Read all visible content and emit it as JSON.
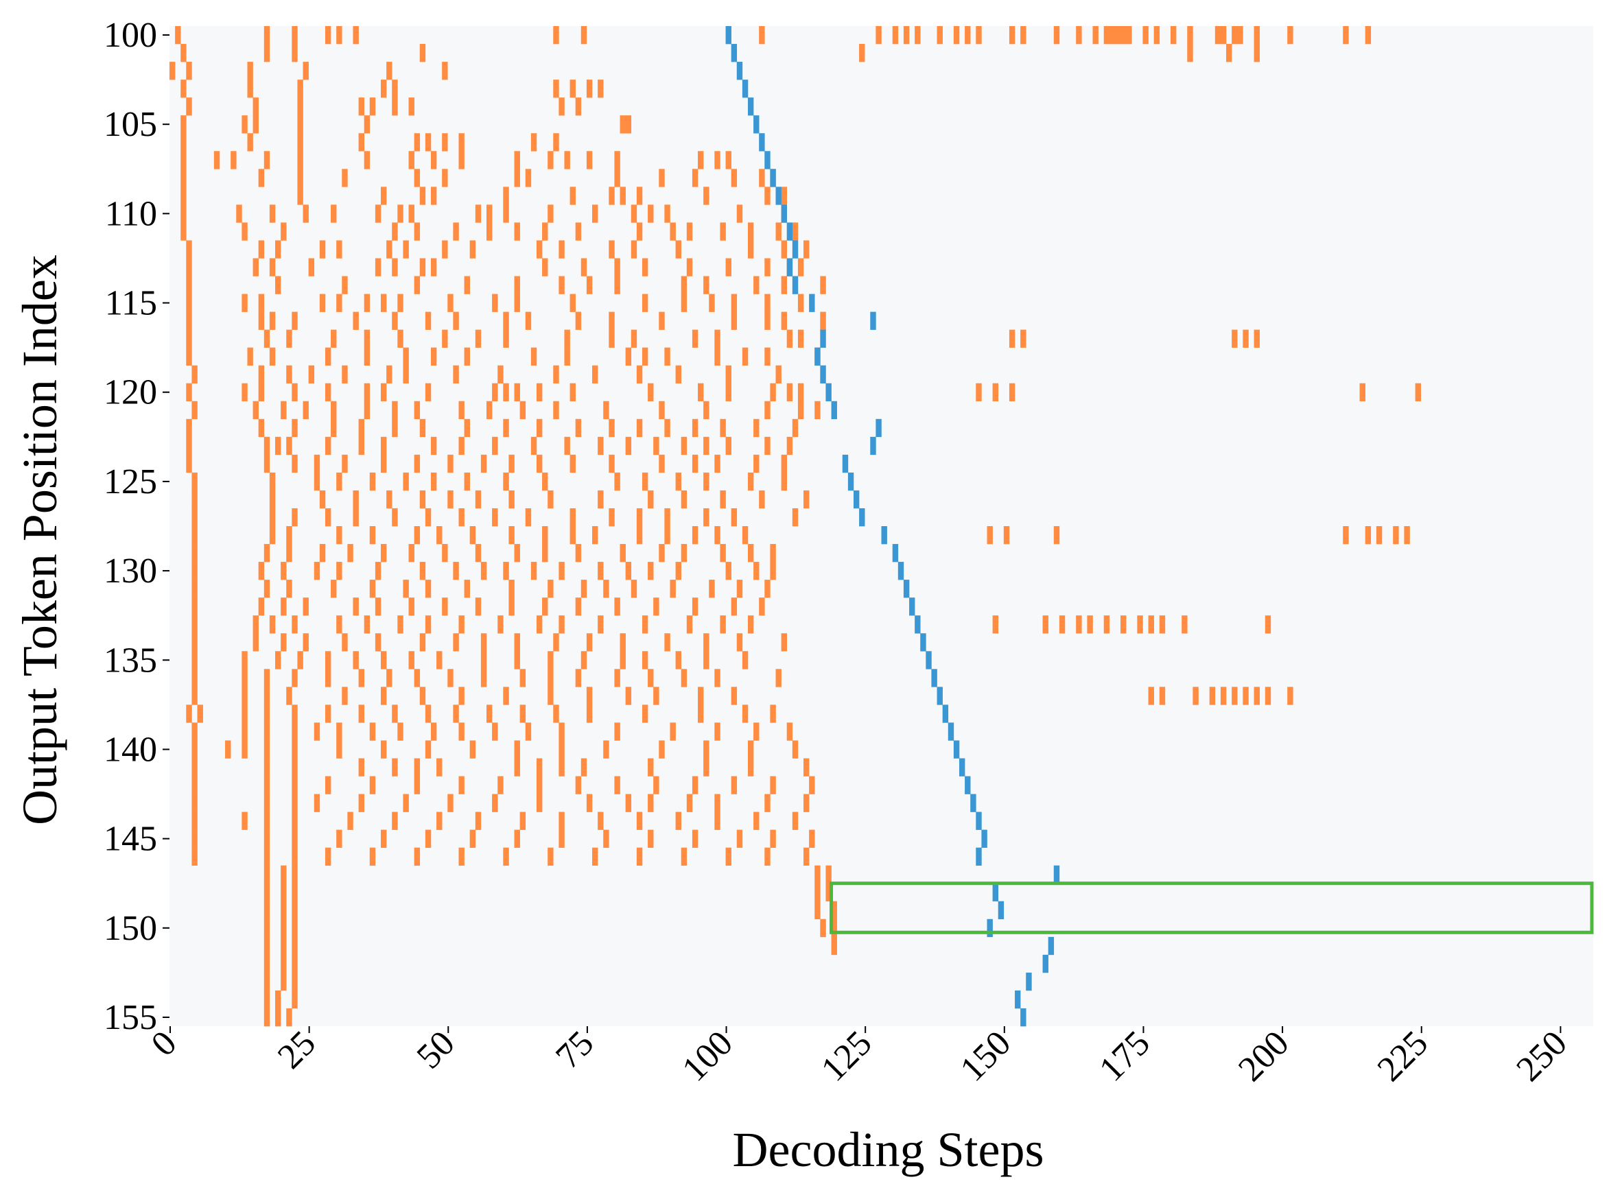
{
  "chart_data": {
    "type": "heatmap",
    "xlabel": "Decoding Steps",
    "ylabel": "Output Token Position Index",
    "xlim": [
      0,
      256
    ],
    "ylim": [
      100,
      155
    ],
    "x_ticks": [
      0,
      25,
      50,
      75,
      100,
      125,
      150,
      175,
      200,
      225,
      250
    ],
    "x_tick_rotation": 45,
    "y_ticks": [
      100,
      105,
      110,
      115,
      120,
      125,
      130,
      135,
      140,
      145,
      150,
      155
    ],
    "grid": false,
    "legend": "none",
    "colors": {
      "background": "#f7f8fa",
      "orange": "#ff8c40",
      "blue": "#3a97d4",
      "highlight_box": "#4cb83c"
    },
    "row_range": [
      100,
      155
    ],
    "column_range": [
      0,
      256
    ],
    "orange_cells": [
      [
        100,
        [
          1,
          17,
          22,
          28,
          30,
          33,
          69,
          74,
          106,
          127,
          130,
          132,
          134,
          138,
          141,
          143,
          145,
          151,
          153,
          159,
          163,
          166,
          168,
          169,
          170,
          171,
          172,
          175,
          177,
          180,
          183,
          188,
          189,
          191,
          192,
          195,
          201,
          211,
          215
        ]
      ],
      [
        101,
        [
          2,
          17,
          22,
          45,
          124,
          183,
          190,
          195
        ]
      ],
      [
        102,
        [
          0,
          3,
          14,
          24,
          39,
          49
        ]
      ],
      [
        103,
        [
          2,
          14,
          23,
          38,
          40,
          69,
          72,
          75,
          77
        ]
      ],
      [
        104,
        [
          3,
          15,
          23,
          34,
          36,
          40,
          43,
          70,
          73
        ]
      ],
      [
        105,
        [
          2,
          13,
          15,
          23,
          35,
          81,
          82
        ]
      ],
      [
        106,
        [
          2,
          14,
          23,
          34,
          44,
          46,
          49,
          52,
          65,
          69
        ]
      ],
      [
        107,
        [
          2,
          8,
          11,
          17,
          23,
          35,
          43,
          47,
          52,
          62,
          68,
          71,
          75,
          80,
          95,
          98,
          100
        ]
      ],
      [
        108,
        [
          2,
          16,
          23,
          31,
          44,
          49,
          62,
          64,
          80,
          88,
          94,
          101,
          106,
          108
        ]
      ],
      [
        109,
        [
          2,
          23,
          38,
          45,
          47,
          60,
          72,
          79,
          81,
          84,
          96,
          107,
          110
        ]
      ],
      [
        110,
        [
          2,
          12,
          18,
          24,
          29,
          37,
          41,
          43,
          55,
          57,
          60,
          68,
          76,
          83,
          86,
          89,
          102,
          110
        ]
      ],
      [
        111,
        [
          2,
          13,
          20,
          40,
          44,
          51,
          57,
          62,
          67,
          73,
          84,
          90,
          93,
          99,
          104,
          109,
          112
        ]
      ],
      [
        112,
        [
          3,
          16,
          19,
          27,
          30,
          39,
          42,
          49,
          54,
          66,
          70,
          79,
          83,
          91,
          104,
          110,
          114
        ]
      ],
      [
        113,
        [
          3,
          15,
          18,
          25,
          37,
          40,
          45,
          47,
          67,
          74,
          80,
          85,
          93,
          100,
          107,
          111,
          113
        ]
      ],
      [
        114,
        [
          3,
          19,
          31,
          44,
          53,
          62,
          70,
          75,
          80,
          92,
          96,
          105,
          110,
          117
        ]
      ],
      [
        115,
        [
          3,
          13,
          16,
          27,
          30,
          35,
          38,
          41,
          50,
          58,
          62,
          72,
          85,
          92,
          97,
          101,
          107,
          113
        ]
      ],
      [
        116,
        [
          3,
          16,
          18,
          22,
          33,
          40,
          46,
          51,
          60,
          64,
          73,
          79,
          88,
          101,
          107,
          110,
          117
        ]
      ],
      [
        117,
        [
          3,
          17,
          21,
          29,
          35,
          41,
          49,
          55,
          60,
          71,
          79,
          83,
          94,
          98,
          111,
          113,
          151,
          153,
          191,
          193,
          195
        ]
      ],
      [
        118,
        [
          3,
          14,
          18,
          28,
          35,
          42,
          47,
          53,
          65,
          71,
          82,
          85,
          89,
          98,
          103,
          107,
          116
        ]
      ],
      [
        119,
        [
          4,
          16,
          21,
          25,
          31,
          39,
          42,
          51,
          59,
          69,
          76,
          84,
          91,
          100,
          109
        ]
      ],
      [
        120,
        [
          3,
          13,
          16,
          22,
          28,
          35,
          38,
          46,
          58,
          60,
          62,
          66,
          72,
          86,
          95,
          100,
          108,
          111,
          113,
          145,
          148,
          151,
          214,
          224
        ]
      ],
      [
        121,
        [
          4,
          15,
          20,
          24,
          29,
          35,
          40,
          44,
          52,
          57,
          63,
          69,
          78,
          88,
          96,
          107,
          113,
          116
        ]
      ],
      [
        122,
        [
          3,
          16,
          22,
          29,
          34,
          40,
          45,
          53,
          60,
          66,
          73,
          79,
          84,
          89,
          94,
          99,
          105,
          112
        ]
      ],
      [
        123,
        [
          3,
          17,
          19,
          21,
          28,
          34,
          38,
          47,
          52,
          58,
          65,
          71,
          77,
          82,
          87,
          92,
          96,
          100,
          107,
          111
        ]
      ],
      [
        124,
        [
          3,
          17,
          22,
          26,
          31,
          38,
          44,
          50,
          56,
          61,
          66,
          72,
          79,
          88,
          94,
          98,
          105,
          110
        ]
      ],
      [
        125,
        [
          4,
          18,
          26,
          30,
          36,
          42,
          47,
          53,
          60,
          67,
          80,
          85,
          91,
          96,
          104,
          110
        ]
      ],
      [
        126,
        [
          4,
          18,
          27,
          33,
          39,
          45,
          50,
          55,
          61,
          68,
          77,
          86,
          92,
          99,
          106,
          114
        ]
      ],
      [
        127,
        [
          4,
          18,
          22,
          28,
          33,
          40,
          46,
          52,
          58,
          64,
          72,
          79,
          84,
          89,
          96,
          101,
          112
        ]
      ],
      [
        128,
        [
          4,
          18,
          21,
          30,
          36,
          44,
          48,
          54,
          61,
          67,
          72,
          76,
          84,
          89,
          94,
          98,
          103,
          147,
          150,
          159,
          211,
          215,
          217,
          220,
          222
        ]
      ],
      [
        129,
        [
          4,
          17,
          21,
          27,
          32,
          38,
          43,
          49,
          55,
          62,
          67,
          73,
          81,
          88,
          92,
          99,
          104,
          108
        ]
      ],
      [
        130,
        [
          4,
          16,
          20,
          26,
          30,
          37,
          45,
          51,
          56,
          60,
          65,
          70,
          77,
          82,
          86,
          91,
          100,
          105,
          108
        ]
      ],
      [
        131,
        [
          4,
          17,
          21,
          29,
          36,
          42,
          46,
          53,
          61,
          68,
          74,
          78,
          83,
          90,
          97,
          102,
          107
        ]
      ],
      [
        132,
        [
          4,
          16,
          20,
          24,
          33,
          37,
          43,
          49,
          55,
          61,
          67,
          73,
          80,
          87,
          94,
          101,
          106
        ]
      ],
      [
        133,
        [
          4,
          15,
          18,
          22,
          30,
          35,
          41,
          46,
          52,
          59,
          66,
          70,
          77,
          85,
          93,
          99,
          104,
          148,
          157,
          160,
          163,
          165,
          168,
          171,
          174,
          176,
          178,
          182,
          197
        ]
      ],
      [
        134,
        [
          4,
          15,
          20,
          24,
          31,
          37,
          45,
          51,
          56,
          62,
          69,
          75,
          81,
          89,
          96,
          102,
          110
        ]
      ],
      [
        135,
        [
          4,
          13,
          19,
          23,
          28,
          33,
          38,
          43,
          48,
          56,
          62,
          68,
          74,
          81,
          85,
          91,
          96,
          103
        ]
      ],
      [
        136,
        [
          4,
          13,
          17,
          22,
          28,
          34,
          39,
          44,
          50,
          56,
          63,
          68,
          73,
          80,
          86,
          92,
          98,
          109
        ]
      ],
      [
        137,
        [
          4,
          13,
          17,
          21,
          31,
          38,
          45,
          52,
          60,
          68,
          75,
          82,
          87,
          95,
          101,
          176,
          178,
          184,
          187,
          189,
          191,
          193,
          195,
          197,
          201
        ]
      ],
      [
        138,
        [
          3,
          5,
          13,
          17,
          22,
          28,
          34,
          40,
          46,
          51,
          57,
          63,
          69,
          75,
          85,
          95,
          103,
          108
        ]
      ],
      [
        139,
        [
          4,
          13,
          17,
          22,
          26,
          30,
          36,
          41,
          47,
          52,
          58,
          64,
          70,
          80,
          90,
          98,
          105,
          111
        ]
      ],
      [
        140,
        [
          4,
          10,
          13,
          17,
          22,
          30,
          38,
          46,
          54,
          62,
          70,
          78,
          88,
          96,
          104,
          112
        ]
      ],
      [
        141,
        [
          4,
          17,
          22,
          34,
          40,
          44,
          48,
          62,
          66,
          70,
          74,
          86,
          96,
          104,
          114
        ]
      ],
      [
        142,
        [
          4,
          17,
          22,
          28,
          36,
          44,
          52,
          59,
          66,
          73,
          80,
          87,
          94,
          101,
          108,
          115
        ]
      ],
      [
        143,
        [
          4,
          17,
          22,
          26,
          34,
          42,
          50,
          58,
          66,
          75,
          82,
          86,
          93,
          98,
          107,
          114
        ]
      ],
      [
        144,
        [
          4,
          13,
          17,
          22,
          32,
          40,
          48,
          55,
          63,
          70,
          77,
          84,
          91,
          98,
          105,
          112
        ]
      ],
      [
        145,
        [
          4,
          17,
          22,
          30,
          38,
          46,
          54,
          62,
          70,
          78,
          86,
          94,
          102,
          108,
          115
        ]
      ],
      [
        146,
        [
          4,
          17,
          22,
          28,
          36,
          44,
          52,
          60,
          68,
          76,
          84,
          92,
          100,
          107,
          114
        ]
      ],
      [
        147,
        [
          17,
          20,
          22,
          116,
          118
        ]
      ],
      [
        148,
        [
          17,
          20,
          22,
          116,
          118
        ]
      ],
      [
        149,
        [
          17,
          20,
          22,
          116,
          119
        ]
      ],
      [
        150,
        [
          17,
          20,
          22,
          117,
          119
        ]
      ],
      [
        151,
        [
          17,
          20,
          22,
          119
        ]
      ],
      [
        152,
        [
          17,
          20,
          22
        ]
      ],
      [
        153,
        [
          17,
          20,
          22
        ]
      ],
      [
        154,
        [
          17,
          19,
          22
        ]
      ],
      [
        155,
        [
          17,
          19,
          21
        ]
      ]
    ],
    "blue_cells": [
      [
        100,
        100
      ],
      [
        101,
        101
      ],
      [
        102,
        102
      ],
      [
        103,
        103
      ],
      [
        104,
        104
      ],
      [
        105,
        105
      ],
      [
        106,
        106
      ],
      [
        107,
        107
      ],
      [
        108,
        108
      ],
      [
        109,
        109
      ],
      [
        110,
        110
      ],
      [
        111,
        111
      ],
      [
        112,
        112
      ],
      [
        113,
        111
      ],
      [
        114,
        112
      ],
      [
        115,
        115
      ],
      [
        116,
        126
      ],
      [
        117,
        117
      ],
      [
        118,
        116
      ],
      [
        119,
        117
      ],
      [
        120,
        118
      ],
      [
        121,
        119
      ],
      [
        122,
        127
      ],
      [
        123,
        126
      ],
      [
        124,
        121
      ],
      [
        125,
        122
      ],
      [
        126,
        123
      ],
      [
        127,
        124
      ],
      [
        128,
        128
      ],
      [
        129,
        130
      ],
      [
        130,
        131
      ],
      [
        131,
        132
      ],
      [
        132,
        133
      ],
      [
        133,
        134
      ],
      [
        134,
        135
      ],
      [
        135,
        136
      ],
      [
        136,
        137
      ],
      [
        137,
        138
      ],
      [
        138,
        139
      ],
      [
        139,
        140
      ],
      [
        140,
        141
      ],
      [
        141,
        142
      ],
      [
        142,
        143
      ],
      [
        143,
        144
      ],
      [
        144,
        145
      ],
      [
        145,
        146
      ],
      [
        146,
        145
      ],
      [
        147,
        159
      ],
      [
        148,
        148
      ],
      [
        149,
        149
      ],
      [
        150,
        147
      ],
      [
        151,
        158
      ],
      [
        152,
        157
      ],
      [
        153,
        154
      ],
      [
        154,
        152
      ],
      [
        155,
        153
      ]
    ],
    "highlight_box": {
      "x": [
        119,
        256
      ],
      "y": [
        147.5,
        150.25
      ]
    }
  }
}
